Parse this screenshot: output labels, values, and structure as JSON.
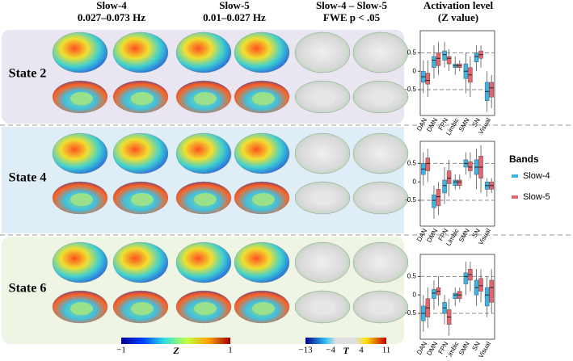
{
  "headers": [
    {
      "line1": "Slow-4",
      "line2": "0.027–0.073 Hz"
    },
    {
      "line1": "Slow-5",
      "line2": "0.01–0.027 Hz"
    },
    {
      "line1": "Slow-4 – Slow-5",
      "line2": "FWE p < .05"
    },
    {
      "line1": "Activation level",
      "line2": "(Z value)"
    }
  ],
  "states": [
    "State 2",
    "State 4",
    "State 6"
  ],
  "legend_title": "Bands",
  "colorbars": {
    "z": [
      "−1",
      "Z",
      "1"
    ],
    "t": [
      "−13",
      "−4",
      "T",
      "4",
      "11"
    ]
  },
  "chart_data": [
    {
      "type": "box",
      "categories": [
        "DAN",
        "DMN",
        "FPN",
        "Limbic",
        "SMN",
        "SN",
        "Visual"
      ],
      "ylim": [
        -1.2,
        1.1
      ],
      "yticks": [
        -0.5,
        0,
        0.5
      ],
      "reference_lines": [
        0.5,
        -0.5
      ],
      "series": [
        {
          "name": "Slow-4",
          "color": "#3cb4e6",
          "min": [
            -0.6,
            -0.2,
            0.1,
            -0.1,
            -0.6,
            0,
            -1.1
          ],
          "q1": [
            -0.3,
            0.1,
            0.3,
            0.1,
            -0.2,
            0.25,
            -0.8
          ],
          "median": [
            -0.15,
            0.3,
            0.45,
            0.15,
            0,
            0.4,
            -0.55
          ],
          "q3": [
            0,
            0.4,
            0.55,
            0.2,
            0.2,
            0.5,
            -0.3
          ],
          "max": [
            0.3,
            0.7,
            0.8,
            0.4,
            0.5,
            0.7,
            0
          ]
        },
        {
          "name": "Slow-5",
          "color": "#e8646a",
          "min": [
            -0.7,
            -0.1,
            0,
            0,
            -0.7,
            0.1,
            -1
          ],
          "q1": [
            -0.35,
            0.15,
            0.2,
            0.1,
            -0.3,
            0.35,
            -0.7
          ],
          "median": [
            -0.25,
            0.35,
            0.35,
            0.15,
            -0.1,
            0.45,
            -0.45
          ],
          "q3": [
            -0.05,
            0.5,
            0.4,
            0.2,
            0.1,
            0.55,
            -0.3
          ],
          "max": [
            0.3,
            0.8,
            0.6,
            0.3,
            0.4,
            0.7,
            -0.1
          ]
        }
      ]
    },
    {
      "type": "box",
      "categories": [
        "DAN",
        "DMN",
        "FPN",
        "Limbic",
        "SMN",
        "SN",
        "Visual"
      ],
      "ylim": [
        -1.2,
        1.1
      ],
      "yticks": [
        -0.5,
        0,
        0.5
      ],
      "reference_lines": [
        0.5,
        -0.5
      ],
      "series": [
        {
          "name": "Slow-4",
          "color": "#3cb4e6",
          "min": [
            -0.1,
            -1,
            -0.6,
            -0.2,
            0.2,
            -0.2,
            -0.4
          ],
          "q1": [
            0.2,
            -0.7,
            -0.3,
            -0.1,
            0.4,
            0.2,
            -0.2
          ],
          "median": [
            0.35,
            -0.5,
            -0.1,
            0,
            0.5,
            0.4,
            -0.1
          ],
          "q3": [
            0.5,
            -0.35,
            0.05,
            0.05,
            0.6,
            0.6,
            0
          ],
          "max": [
            0.8,
            -0.1,
            0.4,
            0.2,
            0.8,
            0.9,
            0.1
          ]
        },
        {
          "name": "Slow-5",
          "color": "#e8646a",
          "min": [
            0,
            -0.9,
            -0.4,
            -0.2,
            0.1,
            -0.3,
            -0.3
          ],
          "q1": [
            0.3,
            -0.65,
            -0.05,
            -0.1,
            0.3,
            0.1,
            -0.2
          ],
          "median": [
            0.5,
            -0.4,
            0.1,
            0,
            0.4,
            0.4,
            -0.1
          ],
          "q3": [
            0.65,
            -0.2,
            0.3,
            0.05,
            0.55,
            0.7,
            0
          ],
          "max": [
            0.9,
            0,
            0.6,
            0.2,
            0.8,
            1,
            0.1
          ]
        }
      ]
    },
    {
      "type": "box",
      "categories": [
        "DAN",
        "DMN",
        "FPN",
        "Limbic",
        "SMN",
        "SN",
        "Visual"
      ],
      "ylim": [
        -1.2,
        1.1
      ],
      "yticks": [
        -0.5,
        0,
        0.5
      ],
      "reference_lines": [
        0.5,
        -0.5
      ],
      "series": [
        {
          "name": "Slow-4",
          "color": "#3cb4e6",
          "min": [
            -1,
            -0.4,
            -0.8,
            -0.3,
            0,
            -0.3,
            -0.6
          ],
          "q1": [
            -0.7,
            -0.1,
            -0.5,
            -0.1,
            0.3,
            0,
            -0.3
          ],
          "median": [
            -0.5,
            0.05,
            -0.35,
            0,
            0.5,
            0.2,
            0
          ],
          "q3": [
            -0.3,
            0.15,
            -0.2,
            0.05,
            0.6,
            0.4,
            0.2
          ],
          "max": [
            0,
            0.4,
            0,
            0.2,
            0.9,
            0.7,
            0.5
          ]
        },
        {
          "name": "Slow-5",
          "color": "#e8646a",
          "min": [
            -0.9,
            -0.3,
            -1.1,
            -0.2,
            0.1,
            -0.2,
            -0.5
          ],
          "q1": [
            -0.6,
            0,
            -0.8,
            -0.1,
            0.4,
            0.1,
            -0.2
          ],
          "median": [
            -0.35,
            0.1,
            -0.6,
            0,
            0.55,
            0.25,
            0.2
          ],
          "q3": [
            -0.1,
            0.2,
            -0.4,
            0.1,
            0.7,
            0.45,
            0.4
          ],
          "max": [
            0.2,
            0.5,
            -0.1,
            0.2,
            0.9,
            0.7,
            0.7
          ]
        }
      ]
    }
  ]
}
